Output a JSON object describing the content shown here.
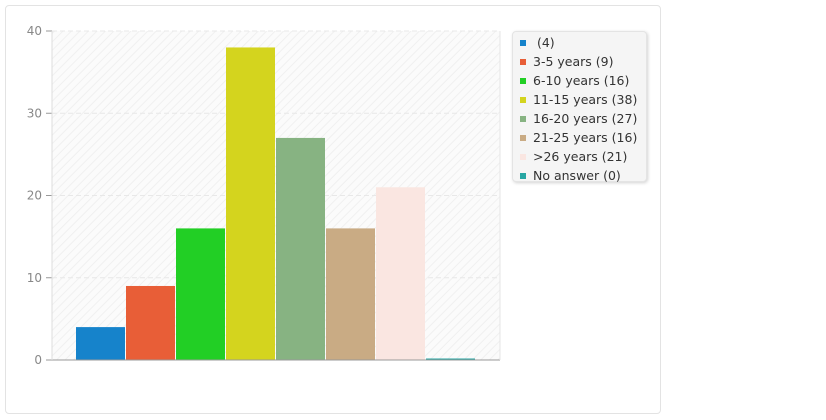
{
  "chart_data": {
    "type": "bar",
    "categories": [
      " (4)",
      "3-5 years (9)",
      "6-10 years (16)",
      "11-15 years (38)",
      "16-20 years (27)",
      "21-25 years (16)",
      ">26 years (21)",
      "No answer (0)"
    ],
    "values": [
      4,
      9,
      16,
      38,
      27,
      16,
      21,
      0
    ],
    "colors": [
      "#1683cb",
      "#e85e37",
      "#22cf25",
      "#d4d41e",
      "#87b382",
      "#c9ab84",
      "#fae6e1",
      "#27a6a3"
    ],
    "ylim": [
      0,
      40
    ],
    "yticks": [
      "0",
      "10",
      "20",
      "30",
      "40"
    ],
    "grid": true,
    "legend_position": "right",
    "title": "",
    "xlabel": "",
    "ylabel": ""
  }
}
